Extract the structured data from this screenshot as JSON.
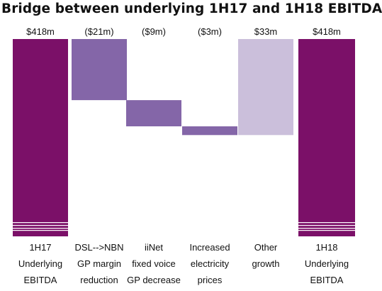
{
  "chart_data": {
    "type": "bar",
    "subtype": "waterfall",
    "title": "Bridge between underlying 1H17 and 1H18 EBITDA",
    "unit": "$m",
    "categories": [
      [
        "1H17",
        "Underlying",
        "EBITDA"
      ],
      [
        "DSL-->NBN",
        "GP margin",
        "reduction"
      ],
      [
        "iiNet",
        "fixed voice",
        "GP decrease"
      ],
      [
        "Increased",
        "electricity",
        "prices"
      ],
      [
        "Other",
        "growth"
      ],
      [
        "1H18",
        "Underlying",
        "EBITDA"
      ]
    ],
    "values": [
      418,
      -21,
      -9,
      -3,
      33,
      418
    ],
    "kinds": [
      "total",
      "delta",
      "delta",
      "delta",
      "delta",
      "total"
    ],
    "value_labels": [
      "$418m",
      "($21m)",
      "($9m)",
      "($3m)",
      "$33m",
      "$418m"
    ],
    "colors": {
      "total": "#7b1068",
      "decrease": "#8466a8",
      "increase": "#cbbfdb"
    },
    "grid": false
  }
}
